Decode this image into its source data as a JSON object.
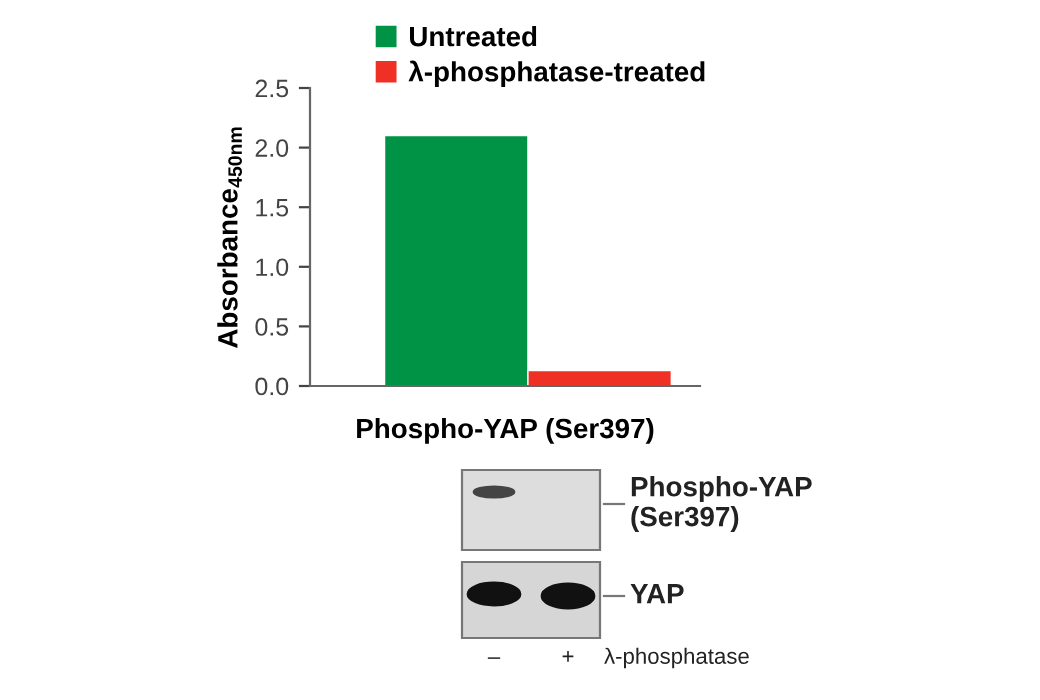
{
  "chart_data": {
    "type": "bar",
    "xlabel": "Phospho-YAP (Ser397)",
    "ylabel": "Absorbance$_{450nm}$",
    "categories": [
      null
    ],
    "series": [
      {
        "name": "Untreated",
        "color": "#009245",
        "values": [
          2.1
        ]
      },
      {
        "name": "λ-phosphatase-treated",
        "color": "#ee3124",
        "values": [
          0.13
        ]
      }
    ],
    "ylim": [
      0,
      2.5
    ],
    "yticks": [
      {
        "value": 0,
        "label": "0.0"
      },
      {
        "value": 0.5,
        "label": "0.5"
      },
      {
        "value": 1,
        "label": "1.0"
      },
      {
        "value": 1.5,
        "label": "1.5"
      },
      {
        "value": 2,
        "label": "2.0"
      },
      {
        "value": 2.5,
        "label": "2.5"
      }
    ],
    "grid": false,
    "legend": "top",
    "annotations": [
      "Phospho-YAP\n(Ser397)",
      "YAP",
      "–",
      "+",
      "λ-phosphatase"
    ]
  }
}
